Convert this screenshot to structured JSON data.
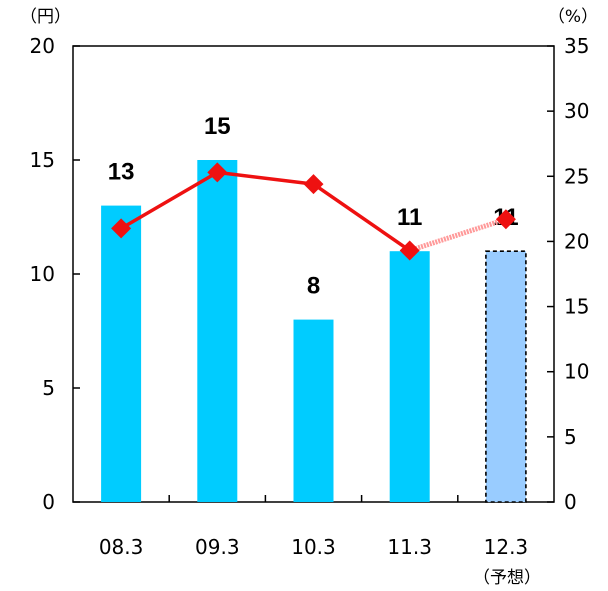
{
  "chart_data": {
    "type": "bar",
    "categories": [
      "08.3",
      "09.3",
      "10.3",
      "11.3",
      "12.3"
    ],
    "category_note": "（予想）",
    "left_axis_unit": "（円）",
    "right_axis_unit": "（%）",
    "ylim_left": [
      0,
      20
    ],
    "yticks_left": [
      "0",
      "5",
      "10",
      "15",
      "20"
    ],
    "ylim_right": [
      0,
      35
    ],
    "yticks_right": [
      "0",
      "5",
      "10",
      "15",
      "20",
      "25",
      "30",
      "35"
    ],
    "grid": false,
    "legend": "none",
    "series": [
      {
        "type": "bar",
        "axis": "left",
        "values": [
          13,
          15,
          8,
          11,
          11
        ],
        "labels": [
          "13",
          "15",
          "8",
          "11",
          "11"
        ],
        "forecast_index": 4
      },
      {
        "type": "line",
        "axis": "right",
        "values": [
          21,
          25.3,
          24.4,
          19.3,
          21.7
        ],
        "forecast_index": 4
      }
    ],
    "colors": {
      "bar": "#00ccff",
      "bar_forecast": "#99ccff",
      "line": "#ee1111",
      "line_forecast": "#ff9999",
      "marker": "#ee1111",
      "axis": "#000000"
    }
  }
}
